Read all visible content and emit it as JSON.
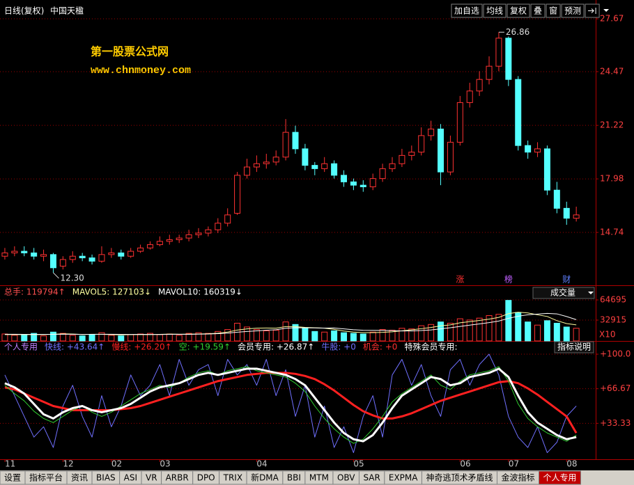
{
  "header": {
    "period": "日线(复权)",
    "stock": "中国天楹"
  },
  "toolbar": [
    "加自选",
    "均线",
    "复权",
    "叠",
    "窗",
    "预测"
  ],
  "watermark": {
    "name": "第一股票公式网",
    "url": "www.chnmoney.com"
  },
  "chart_data": [
    {
      "type": "candlestick",
      "open": [
        13.3,
        13.5,
        13.6,
        13.5,
        13.3,
        13.4,
        12.7,
        13.1,
        13.3,
        13.2,
        13.0,
        13.4,
        13.5,
        13.3,
        13.6,
        13.8,
        14.0,
        14.2,
        14.3,
        14.4,
        14.6,
        14.7,
        14.9,
        15.3,
        15.9,
        18.2,
        18.7,
        18.9,
        19.0,
        19.3,
        20.8,
        19.8,
        18.8,
        18.6,
        18.9,
        18.2,
        17.8,
        17.6,
        17.5,
        18.0,
        18.6,
        18.9,
        19.4,
        19.6,
        20.6,
        21.0,
        18.4,
        20.2,
        22.6,
        23.3,
        24.0,
        24.8,
        26.5,
        24.0,
        20.0,
        19.6,
        19.8,
        17.3,
        16.2,
        15.6
      ],
      "high": [
        13.8,
        13.9,
        13.9,
        13.8,
        13.7,
        13.5,
        13.3,
        13.6,
        13.5,
        13.4,
        13.9,
        13.8,
        13.7,
        13.8,
        14.0,
        14.2,
        14.5,
        14.6,
        14.6,
        14.9,
        15.0,
        15.1,
        15.6,
        16.2,
        18.4,
        19.2,
        19.4,
        19.5,
        19.7,
        21.6,
        21.2,
        20.1,
        19.0,
        19.3,
        19.1,
        18.5,
        18.0,
        17.9,
        18.3,
        18.9,
        19.3,
        19.8,
        20.0,
        21.1,
        21.5,
        21.3,
        20.6,
        23.0,
        23.8,
        24.5,
        25.4,
        26.86,
        26.6,
        24.2,
        20.3,
        20.2,
        20.0,
        17.8,
        16.6,
        16.3
      ],
      "low": [
        13.1,
        13.3,
        13.3,
        13.1,
        13.0,
        12.3,
        12.5,
        12.9,
        13.0,
        12.8,
        12.9,
        13.2,
        13.1,
        13.2,
        13.5,
        13.7,
        13.9,
        14.0,
        14.1,
        14.2,
        14.4,
        14.5,
        14.7,
        15.1,
        15.8,
        18.0,
        18.4,
        18.6,
        18.8,
        19.1,
        19.5,
        18.5,
        18.2,
        18.4,
        18.0,
        17.5,
        17.3,
        17.2,
        17.3,
        17.8,
        18.4,
        18.7,
        19.1,
        19.4,
        20.3,
        17.6,
        18.2,
        20.0,
        22.3,
        23.0,
        23.7,
        24.5,
        23.6,
        19.7,
        19.2,
        19.3,
        17.0,
        15.9,
        15.2,
        15.4
      ],
      "close": [
        13.5,
        13.6,
        13.5,
        13.3,
        13.4,
        12.6,
        13.1,
        13.3,
        13.2,
        13.0,
        13.4,
        13.5,
        13.3,
        13.6,
        13.8,
        14.0,
        14.2,
        14.3,
        14.4,
        14.6,
        14.7,
        14.9,
        15.3,
        15.8,
        18.2,
        18.7,
        18.9,
        19.0,
        19.3,
        20.8,
        19.8,
        18.8,
        18.6,
        18.9,
        18.2,
        17.8,
        17.6,
        17.5,
        18.0,
        18.6,
        18.9,
        19.4,
        19.6,
        20.6,
        21.0,
        18.4,
        20.2,
        22.6,
        23.3,
        24.0,
        24.8,
        26.5,
        24.0,
        20.0,
        19.6,
        19.8,
        17.3,
        16.2,
        15.6,
        15.8
      ],
      "up_color": "#ff3232",
      "down_color": "#54ffff",
      "xlim": [
        -0.5,
        60.5
      ],
      "ylim": [
        11.54,
        28.05
      ],
      "yticks": [
        14.74,
        17.98,
        21.22,
        24.47,
        27.67
      ],
      "grid": true,
      "annotations": [
        {
          "index": 51,
          "value": 26.86,
          "label": "26.86"
        },
        {
          "index": 5,
          "value": 12.3,
          "label": "12.30"
        }
      ],
      "event_markers": [
        {
          "index": 47,
          "label": "涨",
          "color": "#ff3030"
        },
        {
          "index": 52,
          "label": "榜",
          "color": "#c060ff"
        },
        {
          "index": 58,
          "label": "财",
          "color": "#6080ff"
        }
      ]
    },
    {
      "type": "bar",
      "indicator": "成交量",
      "series": [
        {
          "name": "总手: 119794↑",
          "color": "#ff5050",
          "type": "bar",
          "values": [
            11000,
            9000,
            10000,
            12000,
            8000,
            14000,
            12000,
            9000,
            8000,
            10000,
            13000,
            9000,
            8000,
            10000,
            11000,
            12000,
            10000,
            11000,
            9000,
            12000,
            13000,
            12000,
            15000,
            18000,
            28000,
            22000,
            18000,
            16000,
            17000,
            30000,
            26000,
            20000,
            15000,
            14000,
            16000,
            13000,
            12000,
            11000,
            14000,
            18000,
            17000,
            20000,
            19000,
            24000,
            26000,
            30000,
            28000,
            35000,
            33000,
            36000,
            40000,
            42000,
            64000,
            45000,
            30000,
            25000,
            32000,
            28000,
            22000,
            20000
          ]
        },
        {
          "name": "MAVOL5: 127103↓",
          "color": "#ffffa0",
          "type": "line",
          "values": [
            10000,
            10000,
            10000,
            10000,
            10000,
            10600,
            11200,
            11000,
            10200,
            10600,
            10400,
            10000,
            9600,
            10000,
            10200,
            10000,
            10400,
            10800,
            10600,
            10800,
            11000,
            11400,
            12200,
            14000,
            17200,
            19000,
            20200,
            20400,
            20200,
            22600,
            22600,
            21400,
            20800,
            20200,
            18200,
            15600,
            14000,
            13200,
            13200,
            13600,
            14400,
            16000,
            17600,
            19400,
            21200,
            23800,
            25400,
            28600,
            30400,
            32400,
            34400,
            37200,
            43000,
            45400,
            44200,
            41200,
            38600,
            32000,
            27400,
            25400
          ]
        },
        {
          "name": "MAVOL10: 160319↓",
          "color": "#ffffff",
          "type": "line",
          "values": [
            10500,
            10500,
            10400,
            10400,
            10400,
            10400,
            10500,
            10500,
            10400,
            10400,
            10500,
            10600,
            10400,
            10300,
            10400,
            10300,
            10200,
            10400,
            10600,
            10400,
            10700,
            10900,
            11500,
            12400,
            13900,
            15000,
            15900,
            17000,
            17700,
            20000,
            20800,
            20700,
            20600,
            20300,
            20400,
            19100,
            17700,
            16800,
            16700,
            16600,
            16300,
            15800,
            15800,
            16400,
            17400,
            19100,
            20800,
            22900,
            25000,
            26900,
            28900,
            31400,
            35700,
            39000,
            41300,
            42400,
            43500,
            42700,
            38500,
            33600
          ]
        }
      ],
      "up_color": "#ff3232",
      "down_color": "#54ffff",
      "xlim": [
        -0.5,
        60.5
      ],
      "ylim": [
        0,
        68000
      ],
      "yticks": [
        32915,
        64695
      ],
      "unit_label": "X10",
      "grid": true
    },
    {
      "type": "line",
      "title": "个人专用",
      "title_color": "#c080ff",
      "button": "指标说明",
      "series": [
        {
          "name": "快线: +43.64↑",
          "color": "#7070ff",
          "width": 1,
          "values": [
            80,
            60,
            40,
            20,
            30,
            10,
            50,
            70,
            40,
            20,
            60,
            30,
            50,
            80,
            60,
            70,
            90,
            60,
            95,
            70,
            85,
            90,
            60,
            95,
            80,
            90,
            70,
            95,
            60,
            85,
            40,
            70,
            20,
            50,
            10,
            30,
            5,
            40,
            60,
            20,
            80,
            95,
            70,
            90,
            60,
            40,
            85,
            95,
            70,
            90,
            100,
            80,
            40,
            20,
            10,
            30,
            5,
            15,
            40,
            50
          ]
        },
        {
          "name": "慢线: +26.20↑",
          "color": "#ff2020",
          "width": 3,
          "values": [
            68,
            66,
            62,
            58,
            54,
            50,
            48,
            46,
            46,
            46,
            46,
            46,
            47,
            48,
            50,
            53,
            56,
            59,
            62,
            65,
            68,
            71,
            74,
            76,
            78,
            80,
            81,
            82,
            82,
            82,
            81,
            79,
            76,
            71,
            65,
            58,
            51,
            45,
            41,
            38,
            38,
            40,
            43,
            47,
            51,
            55,
            58,
            61,
            64,
            67,
            70,
            73,
            74,
            72,
            67,
            61,
            54,
            47,
            40,
            24
          ]
        },
        {
          "name": "空: +19.59↑",
          "color": "#30d030",
          "width": 1,
          "values": [
            70,
            62,
            55,
            45,
            38,
            34,
            40,
            46,
            50,
            44,
            40,
            44,
            50,
            56,
            62,
            66,
            70,
            68,
            72,
            78,
            82,
            84,
            80,
            84,
            86,
            88,
            84,
            82,
            80,
            78,
            72,
            64,
            50,
            38,
            28,
            20,
            14,
            18,
            28,
            40,
            54,
            62,
            68,
            74,
            80,
            70,
            66,
            74,
            80,
            82,
            84,
            88,
            74,
            52,
            38,
            30,
            24,
            20,
            16,
            22
          ]
        },
        {
          "name": "会员专用: +26.87↑",
          "color": "#ffffff",
          "width": 3,
          "values": [
            72,
            68,
            62,
            52,
            42,
            38,
            44,
            48,
            50,
            46,
            44,
            46,
            48,
            52,
            58,
            64,
            68,
            70,
            72,
            76,
            80,
            82,
            80,
            82,
            84,
            86,
            86,
            84,
            82,
            80,
            76,
            70,
            58,
            46,
            34,
            24,
            18,
            16,
            22,
            34,
            48,
            60,
            66,
            72,
            78,
            76,
            70,
            72,
            78,
            80,
            82,
            86,
            78,
            60,
            44,
            34,
            28,
            22,
            18,
            20
          ]
        }
      ],
      "legend_extra": [
        {
          "label": "牛股: +0",
          "color": "#7070ff"
        },
        {
          "label": "机会: +0",
          "color": "#ff3030"
        },
        {
          "label": "特殊会员专用:",
          "color": "#ffffff"
        }
      ],
      "xlim": [
        -0.5,
        60.5
      ],
      "xticks": [
        {
          "value": 0,
          "label": "11"
        },
        {
          "value": 6,
          "label": "12"
        },
        {
          "value": 11,
          "label": "02"
        },
        {
          "value": 16,
          "label": "03"
        },
        {
          "value": 26,
          "label": "04"
        },
        {
          "value": 36,
          "label": "05"
        },
        {
          "value": 47,
          "label": "06"
        },
        {
          "value": 52,
          "label": "07"
        },
        {
          "value": 58,
          "label": "08"
        }
      ],
      "ylim": [
        0,
        100
      ],
      "yticks": [
        {
          "value": 100,
          "label": "+100.0"
        },
        {
          "value": 66.67,
          "label": "+66.67"
        },
        {
          "value": 33.33,
          "label": "+33.33"
        }
      ],
      "grid": true
    }
  ],
  "tabs": [
    "设置",
    "指标平台",
    "资讯",
    "BIAS",
    "ASI",
    "VR",
    "ARBR",
    "DPO",
    "TRIX",
    "新DMA",
    "BBI",
    "MTM",
    "OBV",
    "SAR",
    "EXPMA",
    "神奇逃顶术矛盾线",
    "金波指标",
    "个人专用"
  ],
  "selected_tab": 17
}
